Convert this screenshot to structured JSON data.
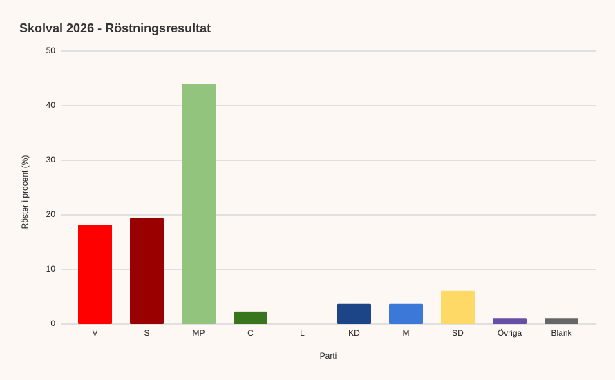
{
  "chart_data": {
    "type": "bar",
    "title": "Skolval 2026 - Röstningsresultat",
    "x_label": "Parti",
    "y_label": "Röster i procent (%)",
    "categories": [
      "V",
      "S",
      "MP",
      "C",
      "L",
      "KD",
      "M",
      "SD",
      "Övriga",
      "Blank"
    ],
    "values": [
      18.2,
      19.4,
      44,
      2.3,
      0,
      3.7,
      3.7,
      6.1,
      1.1,
      1.1
    ],
    "colors": [
      "#ff0000",
      "#990000",
      "#93c47d",
      "#38761d",
      "#6fa8dc",
      "#1c4587",
      "#3c78d8",
      "#ffd966",
      "#674ea7",
      "#666666"
    ],
    "ylim": [
      0,
      50
    ],
    "yticks": [
      0,
      10,
      20,
      30,
      40,
      50
    ],
    "grid": true
  }
}
